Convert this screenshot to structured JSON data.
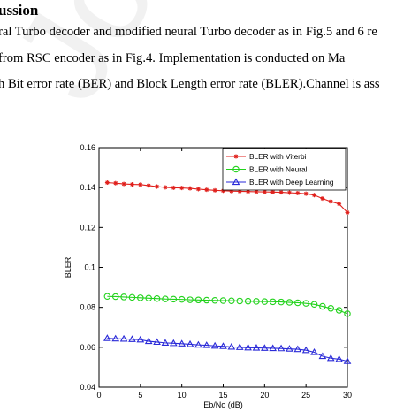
{
  "paper": {
    "heading": "ussion",
    "lines": [
      "ral Turbo decoder and modified neural Turbo decoder as in Fig.5 and 6 re",
      "from RSC encoder as in Fig.4. Implementation is conducted on Ma",
      "h Bit error rate (BER) and Block Length error rate (BLER).Channel is ass"
    ],
    "watermark": "Journal P"
  },
  "chart_data": {
    "type": "line",
    "title": "",
    "xlabel": "Eb/No (dB)",
    "ylabel": "BLER",
    "xlim": [
      0,
      30
    ],
    "ylim": [
      0.04,
      0.16
    ],
    "x_ticks": [
      0,
      5,
      10,
      15,
      20,
      25,
      30
    ],
    "y_ticks": [
      0.04,
      0.06,
      0.08,
      0.1,
      0.12,
      0.14,
      0.16
    ],
    "y_tick_labels": [
      "0.04",
      "0.06",
      "0.08",
      "0.1",
      "0.12",
      "0.14",
      "0.16"
    ],
    "grid": false,
    "legend_position": "top-right",
    "x": [
      1,
      2,
      3,
      4,
      5,
      6,
      7,
      8,
      9,
      10,
      11,
      12,
      13,
      14,
      15,
      16,
      17,
      18,
      19,
      20,
      21,
      22,
      23,
      24,
      25,
      26,
      27,
      28,
      29,
      30
    ],
    "series": [
      {
        "name": "BLER with Viterbi",
        "color": "#e0201c",
        "marker": "star",
        "values": [
          0.1425,
          0.1422,
          0.1418,
          0.1416,
          0.1415,
          0.141,
          0.1405,
          0.1401,
          0.1399,
          0.1398,
          0.1396,
          0.1392,
          0.1389,
          0.1386,
          0.1384,
          0.1382,
          0.1381,
          0.138,
          0.1379,
          0.1378,
          0.1377,
          0.1376,
          0.1374,
          0.1372,
          0.1369,
          0.1362,
          0.1345,
          0.133,
          0.1318,
          0.1275
        ]
      },
      {
        "name": "BLER with Neural",
        "color": "#22d21c",
        "marker": "circle",
        "values": [
          0.0855,
          0.0854,
          0.0852,
          0.085,
          0.0848,
          0.0846,
          0.0844,
          0.0842,
          0.0841,
          0.084,
          0.0838,
          0.0837,
          0.0836,
          0.0835,
          0.0834,
          0.0833,
          0.0832,
          0.0831,
          0.083,
          0.0829,
          0.0828,
          0.0827,
          0.0825,
          0.0823,
          0.082,
          0.0815,
          0.0805,
          0.0795,
          0.0785,
          0.0768
        ]
      },
      {
        "name": "BLER with Deep Learning",
        "color": "#2a2ad8",
        "marker": "triangle",
        "values": [
          0.0645,
          0.0643,
          0.0642,
          0.064,
          0.0638,
          0.063,
          0.0626,
          0.0622,
          0.062,
          0.0618,
          0.0615,
          0.0612,
          0.061,
          0.0607,
          0.0605,
          0.0602,
          0.06,
          0.0598,
          0.0597,
          0.0596,
          0.0595,
          0.0594,
          0.0592,
          0.059,
          0.0585,
          0.0575,
          0.0555,
          0.0545,
          0.054,
          0.053
        ]
      }
    ]
  }
}
